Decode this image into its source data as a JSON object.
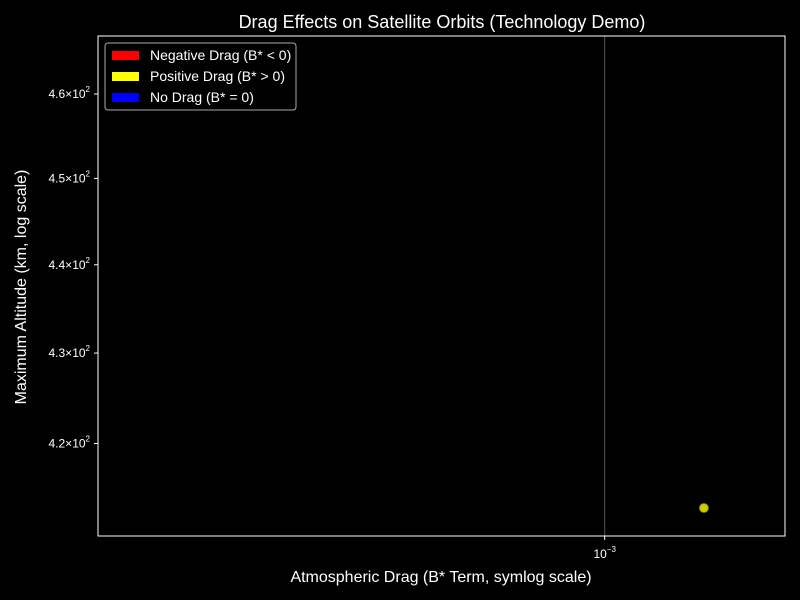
{
  "chart_data": {
    "type": "scatter",
    "title": "Drag Effects on Satellite Orbits (Technology Demo)",
    "xlabel": "Atmospheric Drag (B* Term, symlog scale)",
    "ylabel": "Maximum Altitude (km, log scale)",
    "xscale": "symlog",
    "yscale": "log",
    "xlim": [
      0.00032,
      0.0015
    ],
    "ylim": [
      410,
      467
    ],
    "x_ticks": [
      {
        "value": 0.001,
        "base": "10",
        "exp": "−3"
      }
    ],
    "y_ticks": [
      {
        "value": 420,
        "mant": "4.2",
        "times": "×",
        "base": "10",
        "exp": "2"
      },
      {
        "value": 430,
        "mant": "4.3",
        "times": "×",
        "base": "10",
        "exp": "2"
      },
      {
        "value": 440,
        "mant": "4.4",
        "times": "×",
        "base": "10",
        "exp": "2"
      },
      {
        "value": 450,
        "mant": "4.5",
        "times": "×",
        "base": "10",
        "exp": "2"
      },
      {
        "value": 460,
        "mant": "4.6",
        "times": "×",
        "base": "10",
        "exp": "2"
      }
    ],
    "grid": "vertical line at x tick",
    "legend": {
      "placement": "top-left",
      "entries": [
        {
          "label": "Negative Drag (B* < 0)",
          "color": "#ff0000"
        },
        {
          "label": "Positive Drag (B* > 0)",
          "color": "#ffff00"
        },
        {
          "label": "No Drag (B* = 0)",
          "color": "#0000ff"
        }
      ]
    },
    "series": [
      {
        "color": "#cccc00",
        "points": [
          {
            "x": 0.00125,
            "y": 413
          }
        ]
      }
    ],
    "colors": {
      "background": "#000000",
      "axes": "#ffffff",
      "grid": "#555555"
    }
  }
}
